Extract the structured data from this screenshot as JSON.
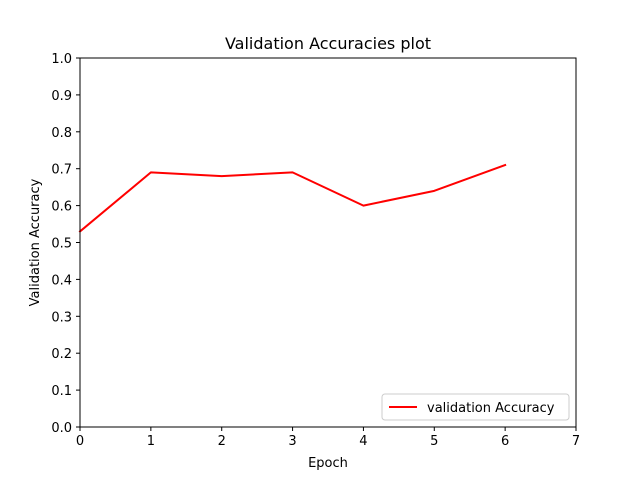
{
  "chart_data": {
    "type": "line",
    "title": "Validation Accuracies plot",
    "xlabel": "Epoch",
    "ylabel": "Validation Accuracy",
    "xlim": [
      0,
      7
    ],
    "ylim": [
      0,
      1.0
    ],
    "xticks": [
      "0",
      "1",
      "2",
      "3",
      "4",
      "5",
      "6",
      "7"
    ],
    "yticks": [
      "0.0",
      "0.1",
      "0.2",
      "0.3",
      "0.4",
      "0.5",
      "0.6",
      "0.7",
      "0.8",
      "0.9",
      "1.0"
    ],
    "grid": false,
    "legend_position": "lower-right",
    "series": [
      {
        "name": "validation Accuracy",
        "color": "#ff0000",
        "x": [
          0,
          1,
          2,
          3,
          4,
          5,
          6
        ],
        "values": [
          0.53,
          0.69,
          0.68,
          0.69,
          0.6,
          0.64,
          0.71
        ]
      }
    ]
  }
}
